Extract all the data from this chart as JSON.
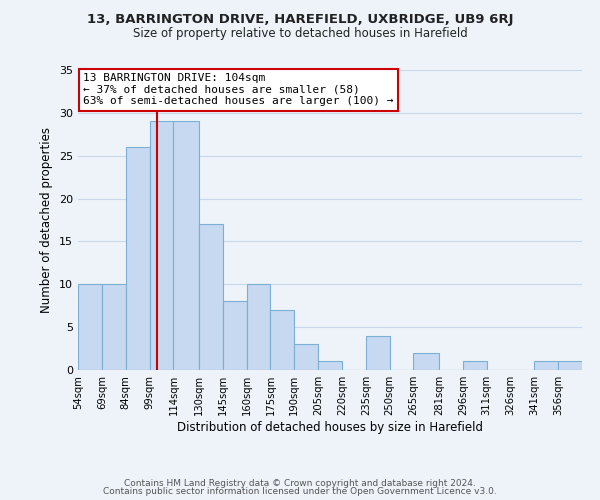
{
  "title_line1": "13, BARRINGTON DRIVE, HAREFIELD, UXBRIDGE, UB9 6RJ",
  "title_line2": "Size of property relative to detached houses in Harefield",
  "xlabel": "Distribution of detached houses by size in Harefield",
  "ylabel": "Number of detached properties",
  "footer_line1": "Contains HM Land Registry data © Crown copyright and database right 2024.",
  "footer_line2": "Contains public sector information licensed under the Open Government Licence v3.0.",
  "bar_labels": [
    "54sqm",
    "69sqm",
    "84sqm",
    "99sqm",
    "114sqm",
    "130sqm",
    "145sqm",
    "160sqm",
    "175sqm",
    "190sqm",
    "205sqm",
    "220sqm",
    "235sqm",
    "250sqm",
    "265sqm",
    "281sqm",
    "296sqm",
    "311sqm",
    "326sqm",
    "341sqm",
    "356sqm"
  ],
  "bar_values": [
    10,
    10,
    26,
    29,
    29,
    17,
    8,
    10,
    7,
    3,
    1,
    0,
    4,
    0,
    2,
    0,
    1,
    0,
    0,
    1,
    1
  ],
  "bar_color": "#c6d9f0",
  "bar_edgecolor": "#7bafd4",
  "grid_color": "#c8d8ea",
  "vline_x": 104,
  "vline_color": "#cc0000",
  "annotation_title": "13 BARRINGTON DRIVE: 104sqm",
  "annotation_line1": "← 37% of detached houses are smaller (58)",
  "annotation_line2": "63% of semi-detached houses are larger (100) →",
  "annotation_box_edgecolor": "#cc0000",
  "annotation_box_facecolor": "#ffffff",
  "ylim": [
    0,
    35
  ],
  "bin_edges": [
    54,
    69,
    84,
    99,
    114,
    130,
    145,
    160,
    175,
    190,
    205,
    220,
    235,
    250,
    265,
    281,
    296,
    311,
    326,
    341,
    356,
    371
  ],
  "yticks": [
    0,
    5,
    10,
    15,
    20,
    25,
    30,
    35
  ],
  "bg_color": "#eef3fa"
}
